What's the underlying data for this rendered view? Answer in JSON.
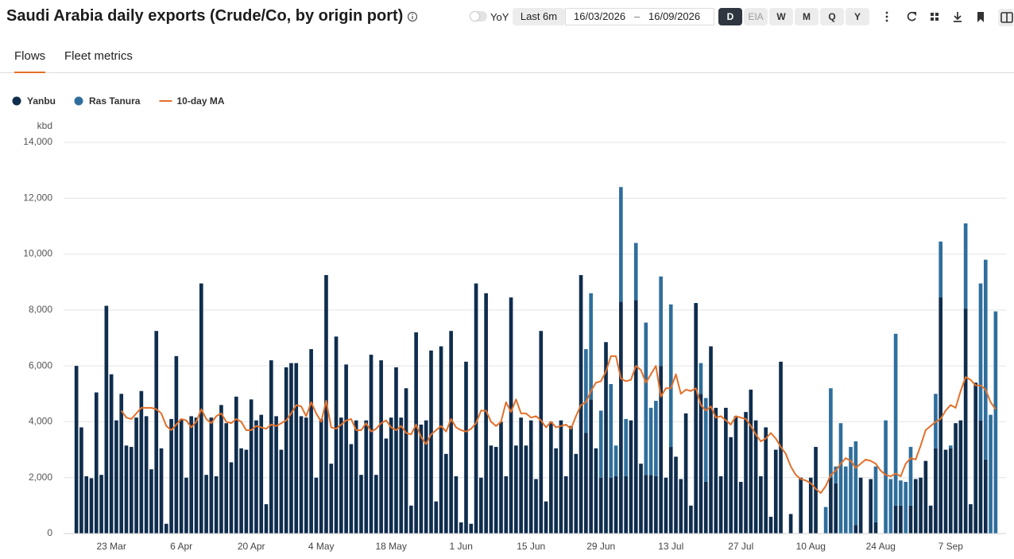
{
  "header": {
    "title": "Saudi Arabia daily exports (Crude/Co, by origin port)",
    "yoy": "YoY",
    "range_button": "Last 6m",
    "date_from": "16/03/2026",
    "separator": "–",
    "date_to": "16/09/2026",
    "frequencies": [
      "D",
      "EIA",
      "W",
      "M",
      "Q",
      "Y"
    ],
    "active_frequency": "D"
  },
  "tabs": {
    "items": [
      "Flows",
      "Fleet metrics"
    ],
    "active": "Flows"
  },
  "chart_data": {
    "type": "bar",
    "stacked": true,
    "y_label": "kbd",
    "legend": "top-left",
    "grid": true,
    "categories": [
      null,
      null,
      null,
      null,
      null,
      null,
      null,
      "23 Mar",
      null,
      null,
      null,
      null,
      null,
      null,
      null,
      null,
      null,
      null,
      null,
      null,
      null,
      "6 Apr",
      null,
      null,
      null,
      null,
      null,
      null,
      null,
      null,
      null,
      null,
      null,
      null,
      null,
      "20 Apr",
      null,
      null,
      null,
      null,
      null,
      null,
      null,
      null,
      null,
      null,
      null,
      null,
      null,
      "4 May",
      null,
      null,
      null,
      null,
      null,
      null,
      null,
      null,
      null,
      null,
      null,
      null,
      null,
      "18 May",
      null,
      null,
      null,
      null,
      null,
      null,
      null,
      null,
      null,
      null,
      null,
      null,
      null,
      "1 Jun",
      null,
      null,
      null,
      null,
      null,
      null,
      null,
      null,
      null,
      null,
      null,
      null,
      null,
      "15 Jun",
      null,
      null,
      null,
      null,
      null,
      null,
      null,
      null,
      null,
      null,
      null,
      null,
      null,
      "29 Jun",
      null,
      null,
      null,
      null,
      null,
      null,
      null,
      null,
      null,
      null,
      null,
      null,
      null,
      "13 Jul",
      null,
      null,
      null,
      null,
      null,
      null,
      null,
      null,
      null,
      null,
      null,
      null,
      null,
      "27 Jul",
      null,
      null,
      null,
      null,
      null,
      null,
      null,
      null,
      null,
      null,
      null,
      null,
      null,
      "10 Aug",
      null,
      null,
      null,
      null,
      null,
      null,
      null,
      null,
      null,
      null,
      null,
      null,
      null,
      "24 Aug",
      null,
      null,
      null,
      null,
      null,
      null,
      null,
      null,
      null,
      null,
      null,
      null,
      null,
      "7 Sep",
      null,
      null,
      null,
      null,
      null,
      null,
      null,
      null,
      null
    ],
    "series": [
      {
        "name": "Yanbu",
        "type": "bar",
        "color": "#0f2d4d",
        "values": [
          6000,
          3800,
          2050,
          1980,
          5050,
          2100,
          8150,
          5700,
          4050,
          5000,
          3150,
          3100,
          4150,
          5100,
          4200,
          2300,
          7250,
          3050,
          350,
          4100,
          6350,
          4100,
          2000,
          4200,
          4150,
          8950,
          2100,
          4150,
          2050,
          4600,
          3950,
          2550,
          4900,
          3050,
          3000,
          4800,
          4050,
          4250,
          1050,
          6200,
          4200,
          3000,
          5950,
          6100,
          6100,
          4200,
          4150,
          6600,
          2000,
          4100,
          9250,
          2500,
          7050,
          4150,
          6050,
          3200,
          4050,
          2100,
          4050,
          6400,
          2100,
          6200,
          3400,
          4150,
          5950,
          4150,
          5200,
          1000,
          7200,
          3900,
          4050,
          6550,
          1150,
          6700,
          2850,
          7250,
          2050,
          400,
          6150,
          350,
          8950,
          2000,
          8600,
          3150,
          3100,
          4000,
          2050,
          8450,
          3150,
          4150,
          3150,
          4050,
          1950,
          7250,
          1150,
          4000,
          3050,
          4050,
          2050,
          3850,
          2850,
          9250,
          3600,
          4800,
          3050,
          2000,
          6850,
          2000,
          2050,
          8300,
          2050,
          4050,
          8350,
          2500,
          2100,
          2100,
          2050,
          6000,
          2000,
          3100,
          2750,
          1950,
          4300,
          1000,
          8250,
          5000,
          1850,
          6700,
          4500,
          2050,
          4500,
          3450,
          4200,
          1850,
          4350,
          5150,
          4050,
          2050,
          3800,
          600,
          3000,
          6150,
          0,
          700,
          0,
          2000,
          0,
          2000,
          3100,
          0,
          0,
          2000,
          1800,
          0,
          0,
          0,
          300,
          2000,
          0,
          1950,
          400,
          0,
          0,
          0,
          1000,
          1000,
          0,
          1000,
          1950,
          2000,
          2600,
          1000,
          3050,
          8450,
          3000,
          3050,
          3950,
          4050,
          8050,
          1050,
          5400,
          4050,
          2650,
          0,
          0
        ]
      },
      {
        "name": "Ras Tanura",
        "type": "bar",
        "color": "#2f6e9c",
        "values": [
          0,
          0,
          0,
          0,
          0,
          0,
          0,
          0,
          0,
          0,
          0,
          0,
          0,
          0,
          0,
          0,
          0,
          0,
          0,
          0,
          0,
          0,
          0,
          0,
          0,
          0,
          0,
          0,
          0,
          0,
          0,
          0,
          0,
          0,
          0,
          0,
          0,
          0,
          0,
          0,
          0,
          0,
          0,
          0,
          0,
          0,
          0,
          0,
          0,
          0,
          0,
          0,
          0,
          0,
          0,
          0,
          0,
          0,
          0,
          0,
          0,
          0,
          0,
          0,
          0,
          0,
          0,
          0,
          0,
          0,
          0,
          0,
          0,
          0,
          0,
          0,
          0,
          0,
          0,
          0,
          0,
          0,
          0,
          0,
          0,
          0,
          0,
          0,
          0,
          0,
          0,
          0,
          0,
          0,
          0,
          0,
          0,
          0,
          0,
          0,
          0,
          0,
          3000,
          3800,
          0,
          2400,
          0,
          3350,
          1100,
          4100,
          2050,
          0,
          2050,
          0,
          5450,
          2400,
          2700,
          3200,
          0,
          5100,
          0,
          0,
          0,
          0,
          0,
          1100,
          3000,
          0,
          0,
          0,
          0,
          0,
          0,
          0,
          0,
          0,
          0,
          0,
          0,
          0,
          0,
          0,
          0,
          0,
          0,
          0,
          0,
          0,
          0,
          0,
          950,
          3200,
          600,
          3950,
          2400,
          3100,
          3000,
          0,
          0,
          0,
          2000,
          0,
          4050,
          1950,
          6150,
          900,
          1850,
          2100,
          0,
          0,
          0,
          0,
          1950,
          2000,
          0,
          100,
          0,
          0,
          3050,
          0,
          0,
          4900,
          7150,
          4250,
          7950
        ]
      },
      {
        "name": "10-day MA",
        "type": "line",
        "color": "#e2702a",
        "values": [
          null,
          null,
          null,
          null,
          null,
          null,
          null,
          null,
          null,
          4400,
          4150,
          4100,
          4300,
          4500,
          4500,
          4500,
          4450,
          4300,
          3850,
          3700,
          3900,
          4100,
          4050,
          3800,
          4000,
          4450,
          4100,
          3950,
          4200,
          4300,
          4000,
          3950,
          4100,
          4000,
          3700,
          3700,
          3850,
          3800,
          3750,
          3900,
          3850,
          3950,
          4050,
          4300,
          4600,
          4550,
          4200,
          4700,
          4300,
          4000,
          4750,
          3800,
          3750,
          3900,
          4050,
          4100,
          3700,
          3700,
          3950,
          3650,
          3750,
          3950,
          4050,
          3800,
          3700,
          3850,
          3600,
          3550,
          3900,
          3450,
          3200,
          3550,
          3700,
          3850,
          3650,
          4100,
          3800,
          3700,
          3650,
          3750,
          3950,
          4400,
          4400,
          4000,
          3850,
          4000,
          4700,
          4350,
          4800,
          4300,
          4300,
          4150,
          4200,
          4050,
          3800,
          4000,
          3800,
          3850,
          3900,
          3750,
          4200,
          4600,
          4700,
          5100,
          5400,
          5450,
          5800,
          6350,
          6350,
          5550,
          5450,
          5500,
          6000,
          5850,
          5400,
          5700,
          6000,
          4900,
          5200,
          5200,
          5700,
          5000,
          5150,
          5100,
          5200,
          4600,
          4400,
          4550,
          4150,
          4200,
          4050,
          3900,
          4200,
          4150,
          4100,
          3850,
          3550,
          3300,
          3400,
          3600,
          3400,
          3100,
          2850,
          2400,
          2100,
          1950,
          1900,
          1800,
          1600,
          1450,
          1700,
          2100,
          2250,
          2500,
          2700,
          2600,
          2350,
          2500,
          2650,
          2600,
          2500,
          2250,
          2100,
          2050,
          2150,
          2050,
          2500,
          2700,
          2650,
          3150,
          3700,
          3850,
          4000,
          4100,
          4400,
          4600,
          4500,
          5100,
          5600,
          5500,
          5300,
          5300,
          5150,
          4700,
          4450
        ]
      }
    ],
    "ylim": [
      0,
      14000
    ],
    "yticks": [
      0,
      {
        "value": 2000,
        "label": "2,000"
      },
      {
        "value": 4000,
        "label": "4,000"
      },
      {
        "value": 6000,
        "label": "6,000"
      },
      {
        "value": 8000,
        "label": "8,000"
      },
      {
        "value": 10000,
        "label": "10,000"
      },
      {
        "value": 12000,
        "label": "12,000"
      },
      {
        "value": 14000,
        "label": "14,000"
      }
    ]
  }
}
